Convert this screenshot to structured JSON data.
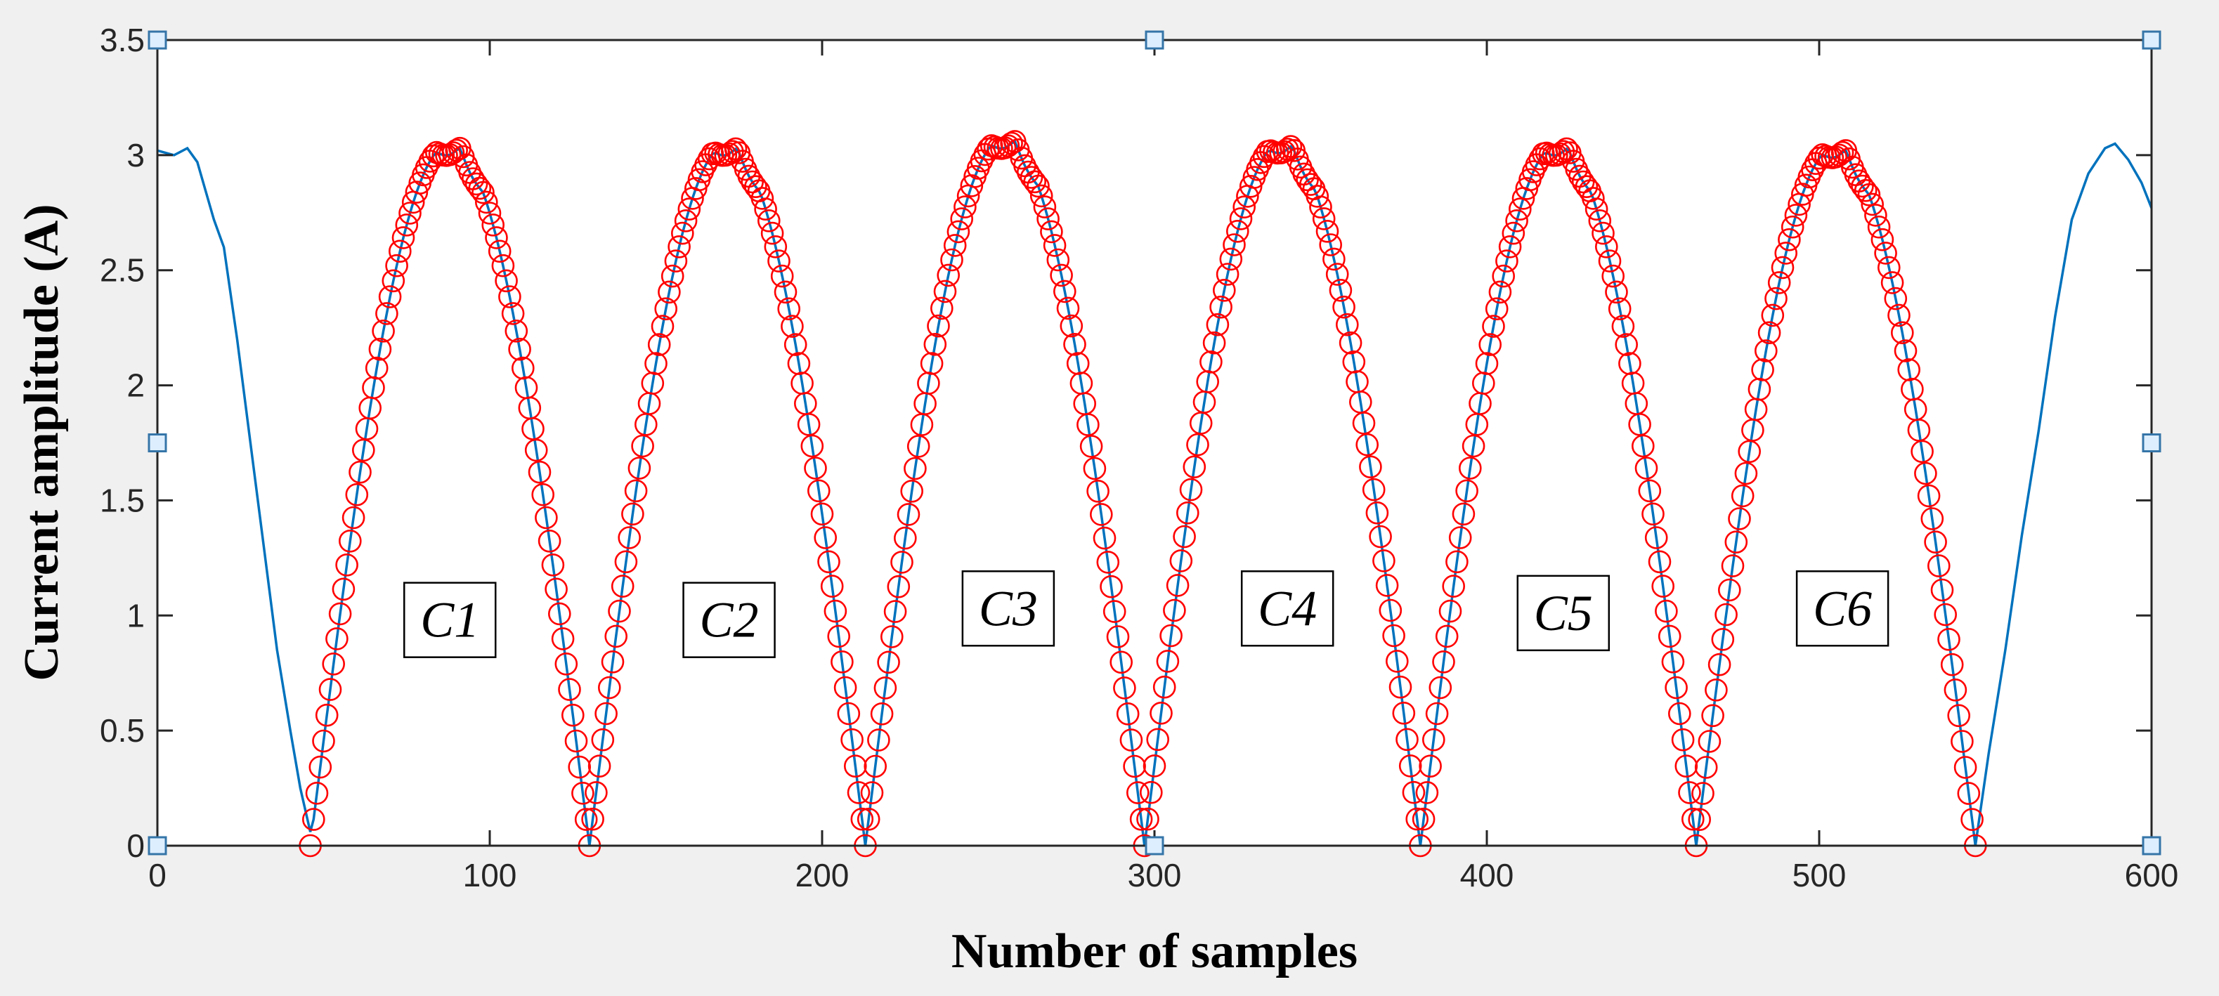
{
  "chart_data": {
    "type": "line",
    "xlabel": "Number of samples",
    "ylabel": "Current amplitude (A)",
    "xlim": [
      0,
      600
    ],
    "ylim": [
      0,
      3.5
    ],
    "xticks": [
      "0",
      "100",
      "200",
      "300",
      "400",
      "500",
      "600"
    ],
    "yticks": [
      "0",
      "0.5",
      "1",
      "1.5",
      "2",
      "2.5",
      "3",
      "3.5"
    ],
    "grid": false,
    "series": [
      {
        "style": "line",
        "color": "#0072bd",
        "description": "continuous current waveform",
        "points": [
          [
            0,
            3.02
          ],
          [
            5,
            3.0
          ],
          [
            9,
            3.03
          ],
          [
            12,
            2.97
          ],
          [
            17,
            2.72
          ],
          [
            20,
            2.6
          ],
          [
            24,
            2.2
          ],
          [
            28,
            1.75
          ],
          [
            32,
            1.3
          ],
          [
            36,
            0.85
          ],
          [
            40,
            0.5
          ],
          [
            43,
            0.25
          ],
          [
            46,
            0.06
          ],
          [
            547,
            0.05
          ],
          [
            551,
            0.4
          ],
          [
            556,
            0.85
          ],
          [
            561,
            1.35
          ],
          [
            566,
            1.8
          ],
          [
            571,
            2.3
          ],
          [
            576,
            2.72
          ],
          [
            581,
            2.92
          ],
          [
            586,
            3.03
          ],
          [
            589,
            3.05
          ],
          [
            593,
            2.98
          ],
          [
            597,
            2.88
          ],
          [
            600,
            2.77
          ]
        ]
      },
      {
        "style": "markers",
        "marker": "circle",
        "color": "#ff0000",
        "description": "sampled cycles C1-C6"
      }
    ],
    "cycles": [
      {
        "label": "C1",
        "start": 46,
        "end": 130,
        "peak": 3.05
      },
      {
        "label": "C2",
        "start": 130,
        "end": 213,
        "peak": 3.05
      },
      {
        "label": "C3",
        "start": 213,
        "end": 297,
        "peak": 3.08
      },
      {
        "label": "C4",
        "start": 297,
        "end": 380,
        "peak": 3.06
      },
      {
        "label": "C5",
        "start": 380,
        "end": 463,
        "peak": 3.05
      },
      {
        "label": "C6",
        "start": 463,
        "end": 547,
        "peak": 3.04
      }
    ],
    "annotations": [
      {
        "text": "C1",
        "x": 88,
        "y": 0.95
      },
      {
        "text": "C2",
        "x": 172,
        "y": 0.95
      },
      {
        "text": "C3",
        "x": 256,
        "y": 1.0
      },
      {
        "text": "C4",
        "x": 340,
        "y": 1.0
      },
      {
        "text": "C5",
        "x": 423,
        "y": 0.98
      },
      {
        "text": "C6",
        "x": 507,
        "y": 1.0
      }
    ],
    "handles": [
      {
        "x": 0,
        "y": 3.5
      },
      {
        "x": 300,
        "y": 3.5
      },
      {
        "x": 600,
        "y": 3.5
      },
      {
        "x": 0,
        "y": 1.75
      },
      {
        "x": 600,
        "y": 1.75
      },
      {
        "x": 0,
        "y": 0
      },
      {
        "x": 300,
        "y": 0
      },
      {
        "x": 600,
        "y": 0
      }
    ]
  }
}
